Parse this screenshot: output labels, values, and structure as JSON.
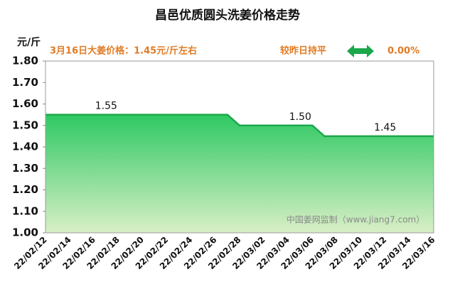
{
  "chart_data": {
    "type": "area",
    "title": "昌邑优质圆头洗姜价格走势",
    "y_label": "元/斤",
    "annotations": {
      "price_note": "3月16日大姜价格：1.45元/斤左右",
      "change_note": "较昨日持平",
      "change_pct": "0.00%"
    },
    "watermark": "中国姜网监制（www.jiang7.com）",
    "categories": [
      "22/02/12",
      null,
      "22/02/14",
      null,
      "22/02/16",
      null,
      "22/02/18",
      null,
      "22/02/20",
      null,
      "22/02/22",
      null,
      "22/02/24",
      null,
      "22/02/26",
      null,
      "22/02/28",
      null,
      "22/03/02",
      null,
      "22/03/04",
      null,
      "22/03/06",
      null,
      "22/03/08",
      null,
      "22/03/10",
      null,
      "22/03/12",
      null,
      "22/03/14",
      null,
      "22/03/16"
    ],
    "series": [
      {
        "color": "#1aa84a",
        "values": [
          1.55,
          1.55,
          1.55,
          1.55,
          1.55,
          1.55,
          1.55,
          1.55,
          1.55,
          1.55,
          1.55,
          1.55,
          1.55,
          1.55,
          1.55,
          1.55,
          1.5,
          1.5,
          1.5,
          1.5,
          1.5,
          1.5,
          1.5,
          1.45,
          1.45,
          1.45,
          1.45,
          1.45,
          1.45,
          1.45,
          1.45,
          1.45,
          1.45
        ],
        "value_labels": [
          null,
          null,
          null,
          null,
          null,
          "1.55",
          null,
          null,
          null,
          null,
          null,
          null,
          null,
          null,
          null,
          null,
          null,
          null,
          null,
          null,
          null,
          "1.50",
          null,
          null,
          null,
          null,
          null,
          null,
          "1.45",
          null,
          null,
          null,
          null
        ]
      }
    ],
    "ylim": [
      1.0,
      1.8
    ],
    "yticks": [
      {
        "value": 1.0,
        "label": "1.00"
      },
      {
        "value": 1.1,
        "label": "1.10"
      },
      {
        "value": 1.2,
        "label": "1.20"
      },
      {
        "value": 1.3,
        "label": "1.30"
      },
      {
        "value": 1.4,
        "label": "1.40"
      },
      {
        "value": 1.5,
        "label": "1.50"
      },
      {
        "value": 1.6,
        "label": "1.60"
      },
      {
        "value": 1.7,
        "label": "1.70"
      },
      {
        "value": 1.8,
        "label": "1.80"
      }
    ]
  }
}
